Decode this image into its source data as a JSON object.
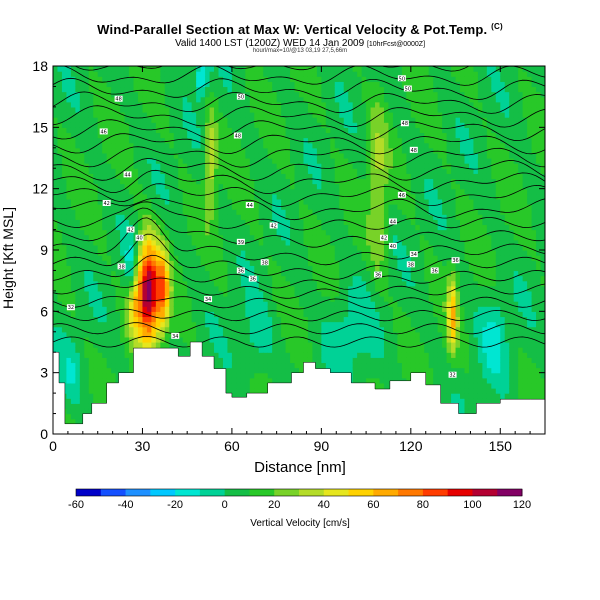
{
  "header": {
    "title": "Wind-Parallel Section at Max W: Vertical Velocity & Pot.Temp.",
    "title_corner": "(C)",
    "subtitle": "Valid 1400 LST (1200Z) WED 14 Jan 2009",
    "subtitle_small": "[10hrFcst@0000Z]",
    "subsub": "hourl/max=10/@13 03,19 27,5,66m"
  },
  "chart_data": {
    "type": "heatmap",
    "title": "Wind-Parallel Section at Max W: Vertical Velocity & Pot.Temp.",
    "xlabel": "Distance [nm]",
    "ylabel": "Height [Kft MSL]",
    "xlim": [
      0,
      165
    ],
    "ylim": [
      0,
      18
    ],
    "xticks": [
      0,
      30,
      60,
      90,
      120,
      150
    ],
    "yticks": [
      0,
      3,
      6,
      9,
      12,
      15,
      18
    ],
    "grid": false,
    "colorbar": {
      "label": "Vertical Velocity [cm/s]",
      "ticks": [
        -60,
        -40,
        -20,
        0,
        20,
        40,
        60,
        80,
        100,
        120
      ],
      "levels": [
        -60,
        -50,
        -40,
        -30,
        -20,
        -10,
        0,
        10,
        20,
        30,
        40,
        50,
        60,
        70,
        80,
        90,
        100,
        110,
        120
      ],
      "colors": [
        "#0000c8",
        "#1450ff",
        "#1e90ff",
        "#00c8ff",
        "#00e6d2",
        "#00d296",
        "#14be46",
        "#28c828",
        "#78d228",
        "#b4dc28",
        "#e6e61e",
        "#ffd200",
        "#ffaa00",
        "#ff7800",
        "#ff3c00",
        "#e60000",
        "#b40032",
        "#820064"
      ]
    },
    "terrain": {
      "x": [
        0,
        2,
        2,
        4,
        4,
        10,
        10,
        13,
        13,
        18,
        18,
        22,
        22,
        27,
        27,
        42,
        42,
        46,
        46,
        50,
        50,
        54,
        54,
        58,
        58,
        60,
        60,
        65,
        65,
        72,
        72,
        80,
        80,
        84,
        84,
        88,
        88,
        93,
        93,
        100,
        100,
        108,
        108,
        113,
        113,
        120,
        120,
        125,
        125,
        130,
        130,
        136,
        136,
        142,
        142,
        150,
        150,
        160,
        160,
        165
      ],
      "y": [
        4.0,
        4.0,
        2.5,
        2.5,
        0.5,
        0.5,
        1.0,
        1.0,
        1.5,
        1.5,
        2.5,
        2.5,
        3.0,
        3.0,
        4.2,
        4.2,
        3.8,
        3.8,
        4.5,
        4.5,
        3.8,
        3.8,
        3.2,
        3.2,
        2.0,
        2.0,
        1.8,
        1.8,
        2.0,
        2.0,
        2.5,
        2.5,
        3.0,
        3.0,
        3.5,
        3.5,
        3.2,
        3.2,
        3.0,
        3.0,
        2.5,
        2.5,
        2.2,
        2.2,
        2.6,
        2.6,
        3.0,
        3.0,
        2.4,
        2.4,
        1.5,
        1.5,
        1.0,
        1.0,
        1.5,
        1.5,
        1.7,
        1.7,
        1.7,
        1.7
      ]
    },
    "features": [
      {
        "type": "updraft",
        "x": 32,
        "y": 7.0,
        "wx": 3.5,
        "wy": 2.4,
        "value": 110
      },
      {
        "type": "updraft",
        "x": 37,
        "y": 7.0,
        "wx": 2.2,
        "wy": 2.0,
        "value": 55
      },
      {
        "type": "updraft",
        "x": 27,
        "y": 6.5,
        "wx": 2.5,
        "wy": 1.8,
        "value": 35
      },
      {
        "type": "updraft",
        "x": 134,
        "y": 5.8,
        "wx": 1.6,
        "wy": 1.8,
        "value": 50
      },
      {
        "type": "updraft",
        "x": 53,
        "y": 13.5,
        "wx": 2.0,
        "wy": 2.5,
        "value": 30
      },
      {
        "type": "updraft",
        "x": 109,
        "y": 12.0,
        "wx": 3.0,
        "wy": 4.5,
        "value": 22
      },
      {
        "type": "downdraft",
        "x": 26,
        "y": 8.0,
        "wx": 2.0,
        "wy": 1.5,
        "value": -28
      },
      {
        "type": "downdraft",
        "x": 50,
        "y": 17.5,
        "wx": 2.5,
        "wy": 1.0,
        "value": -30
      },
      {
        "type": "downdraft",
        "x": 68,
        "y": 4.5,
        "wx": 6,
        "wy": 1.8,
        "value": -14
      },
      {
        "type": "downdraft",
        "x": 100,
        "y": 5.0,
        "wx": 9,
        "wy": 2.2,
        "value": -14
      },
      {
        "type": "downdraft",
        "x": 148,
        "y": 4.8,
        "wx": 5,
        "wy": 2.2,
        "value": -18
      },
      {
        "type": "downdraft",
        "x": 6,
        "y": 3.0,
        "wx": 4,
        "wy": 1.5,
        "value": -12
      }
    ],
    "isentrope_labels": [
      {
        "x": 6,
        "y": 6.2,
        "text": "32"
      },
      {
        "x": 23,
        "y": 8.2,
        "text": "38"
      },
      {
        "x": 26,
        "y": 10.0,
        "text": "42"
      },
      {
        "x": 29,
        "y": 9.6,
        "text": "40"
      },
      {
        "x": 18,
        "y": 11.3,
        "text": "42"
      },
      {
        "x": 25,
        "y": 12.7,
        "text": "44"
      },
      {
        "x": 17,
        "y": 14.8,
        "text": "46"
      },
      {
        "x": 22,
        "y": 16.4,
        "text": "48"
      },
      {
        "x": 63,
        "y": 16.5,
        "text": "50"
      },
      {
        "x": 62,
        "y": 14.6,
        "text": "48"
      },
      {
        "x": 66,
        "y": 11.2,
        "text": "44"
      },
      {
        "x": 74,
        "y": 10.2,
        "text": "42"
      },
      {
        "x": 63,
        "y": 9.4,
        "text": "39"
      },
      {
        "x": 71,
        "y": 8.4,
        "text": "38"
      },
      {
        "x": 63,
        "y": 8.0,
        "text": "36"
      },
      {
        "x": 67,
        "y": 7.6,
        "text": "36"
      },
      {
        "x": 52,
        "y": 6.6,
        "text": "34"
      },
      {
        "x": 41,
        "y": 4.8,
        "text": "34"
      },
      {
        "x": 109,
        "y": 7.8,
        "text": "36"
      },
      {
        "x": 120,
        "y": 8.3,
        "text": "38"
      },
      {
        "x": 114,
        "y": 9.2,
        "text": "40"
      },
      {
        "x": 111,
        "y": 9.6,
        "text": "42"
      },
      {
        "x": 114,
        "y": 10.4,
        "text": "44"
      },
      {
        "x": 117,
        "y": 11.7,
        "text": "46"
      },
      {
        "x": 121,
        "y": 13.9,
        "text": "48"
      },
      {
        "x": 118,
        "y": 15.2,
        "text": "48"
      },
      {
        "x": 119,
        "y": 16.9,
        "text": "50"
      },
      {
        "x": 117,
        "y": 17.4,
        "text": "50"
      },
      {
        "x": 121,
        "y": 8.8,
        "text": "34"
      },
      {
        "x": 135,
        "y": 8.5,
        "text": "36"
      },
      {
        "x": 128,
        "y": 8.0,
        "text": "36"
      },
      {
        "x": 134,
        "y": 2.9,
        "text": "32"
      }
    ]
  }
}
